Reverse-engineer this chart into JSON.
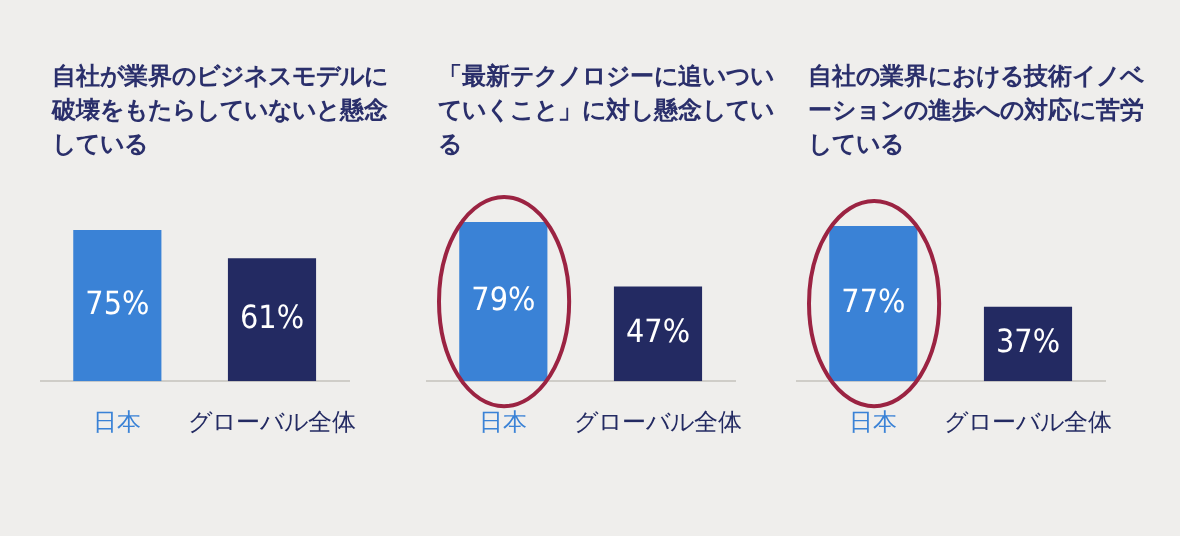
{
  "chart_data": [
    {
      "type": "bar",
      "title": "自社が業界のビジネスモデルに破壊をもたらしていないと懸念している",
      "categories": [
        "日本",
        "グローバル全体"
      ],
      "values": [
        75,
        61
      ],
      "colors": [
        "#3a82d6",
        "#232a62"
      ],
      "value_labels": [
        "75%",
        "61%"
      ],
      "grid": false,
      "tick_labels": "x"
    },
    {
      "type": "bar",
      "title": "「最新テクノロジーに追いついていくこと」に対し懸念している",
      "categories": [
        "日本",
        "グローバル全体"
      ],
      "values": [
        79,
        47
      ],
      "colors": [
        "#3a82d6",
        "#232a62"
      ],
      "value_labels": [
        "79%",
        "47%"
      ],
      "grid": false,
      "tick_labels": "x"
    },
    {
      "type": "bar",
      "title": "自社の業界における技術イノベーションの進歩への対応に苦労している",
      "categories": [
        "日本",
        "グローバル全体"
      ],
      "values": [
        77,
        37
      ],
      "colors": [
        "#3a82d6",
        "#232a62"
      ],
      "value_labels": [
        "77%",
        "37%"
      ],
      "grid": false,
      "tick_labels": "x"
    }
  ]
}
